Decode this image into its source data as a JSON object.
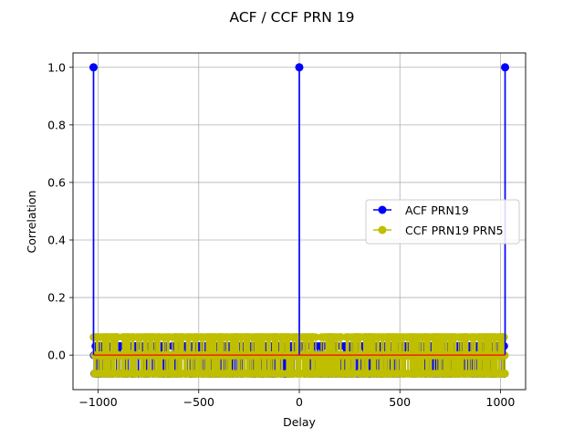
{
  "chart_data": {
    "type": "stem",
    "title": "ACF / CCF PRN 19",
    "xlabel": "Delay",
    "ylabel": "Correlation",
    "xlim": [
      -1125,
      1125
    ],
    "ylim": [
      -0.12,
      1.05
    ],
    "xticks": [
      -1000,
      -500,
      0,
      500,
      1000
    ],
    "xtick_labels": [
      "−1000",
      "−500",
      "0",
      "500",
      "1000"
    ],
    "yticks": [
      0.0,
      0.2,
      0.4,
      0.6,
      0.8,
      1.0
    ],
    "ytick_labels": [
      "0.0",
      "0.2",
      "0.4",
      "0.6",
      "0.8",
      "1.0"
    ],
    "grid": true,
    "legend_position": "center-right",
    "delay_range": [
      -1023,
      1023
    ],
    "series": [
      {
        "name": "ACF PRN19",
        "color": "#0000ff",
        "marker": "circle",
        "peaks": [
          {
            "x": -1023,
            "y": 1.0
          },
          {
            "x": 0,
            "y": 1.0
          },
          {
            "x": 1023,
            "y": 1.0
          }
        ],
        "other_values": [
          -0.0645,
          -0.001,
          0.0313
        ]
      },
      {
        "name": "CCF PRN19 PRN5",
        "color": "#bfbf00",
        "marker": "circle",
        "values": [
          -0.0645,
          -0.001,
          0.0626
        ]
      }
    ]
  }
}
